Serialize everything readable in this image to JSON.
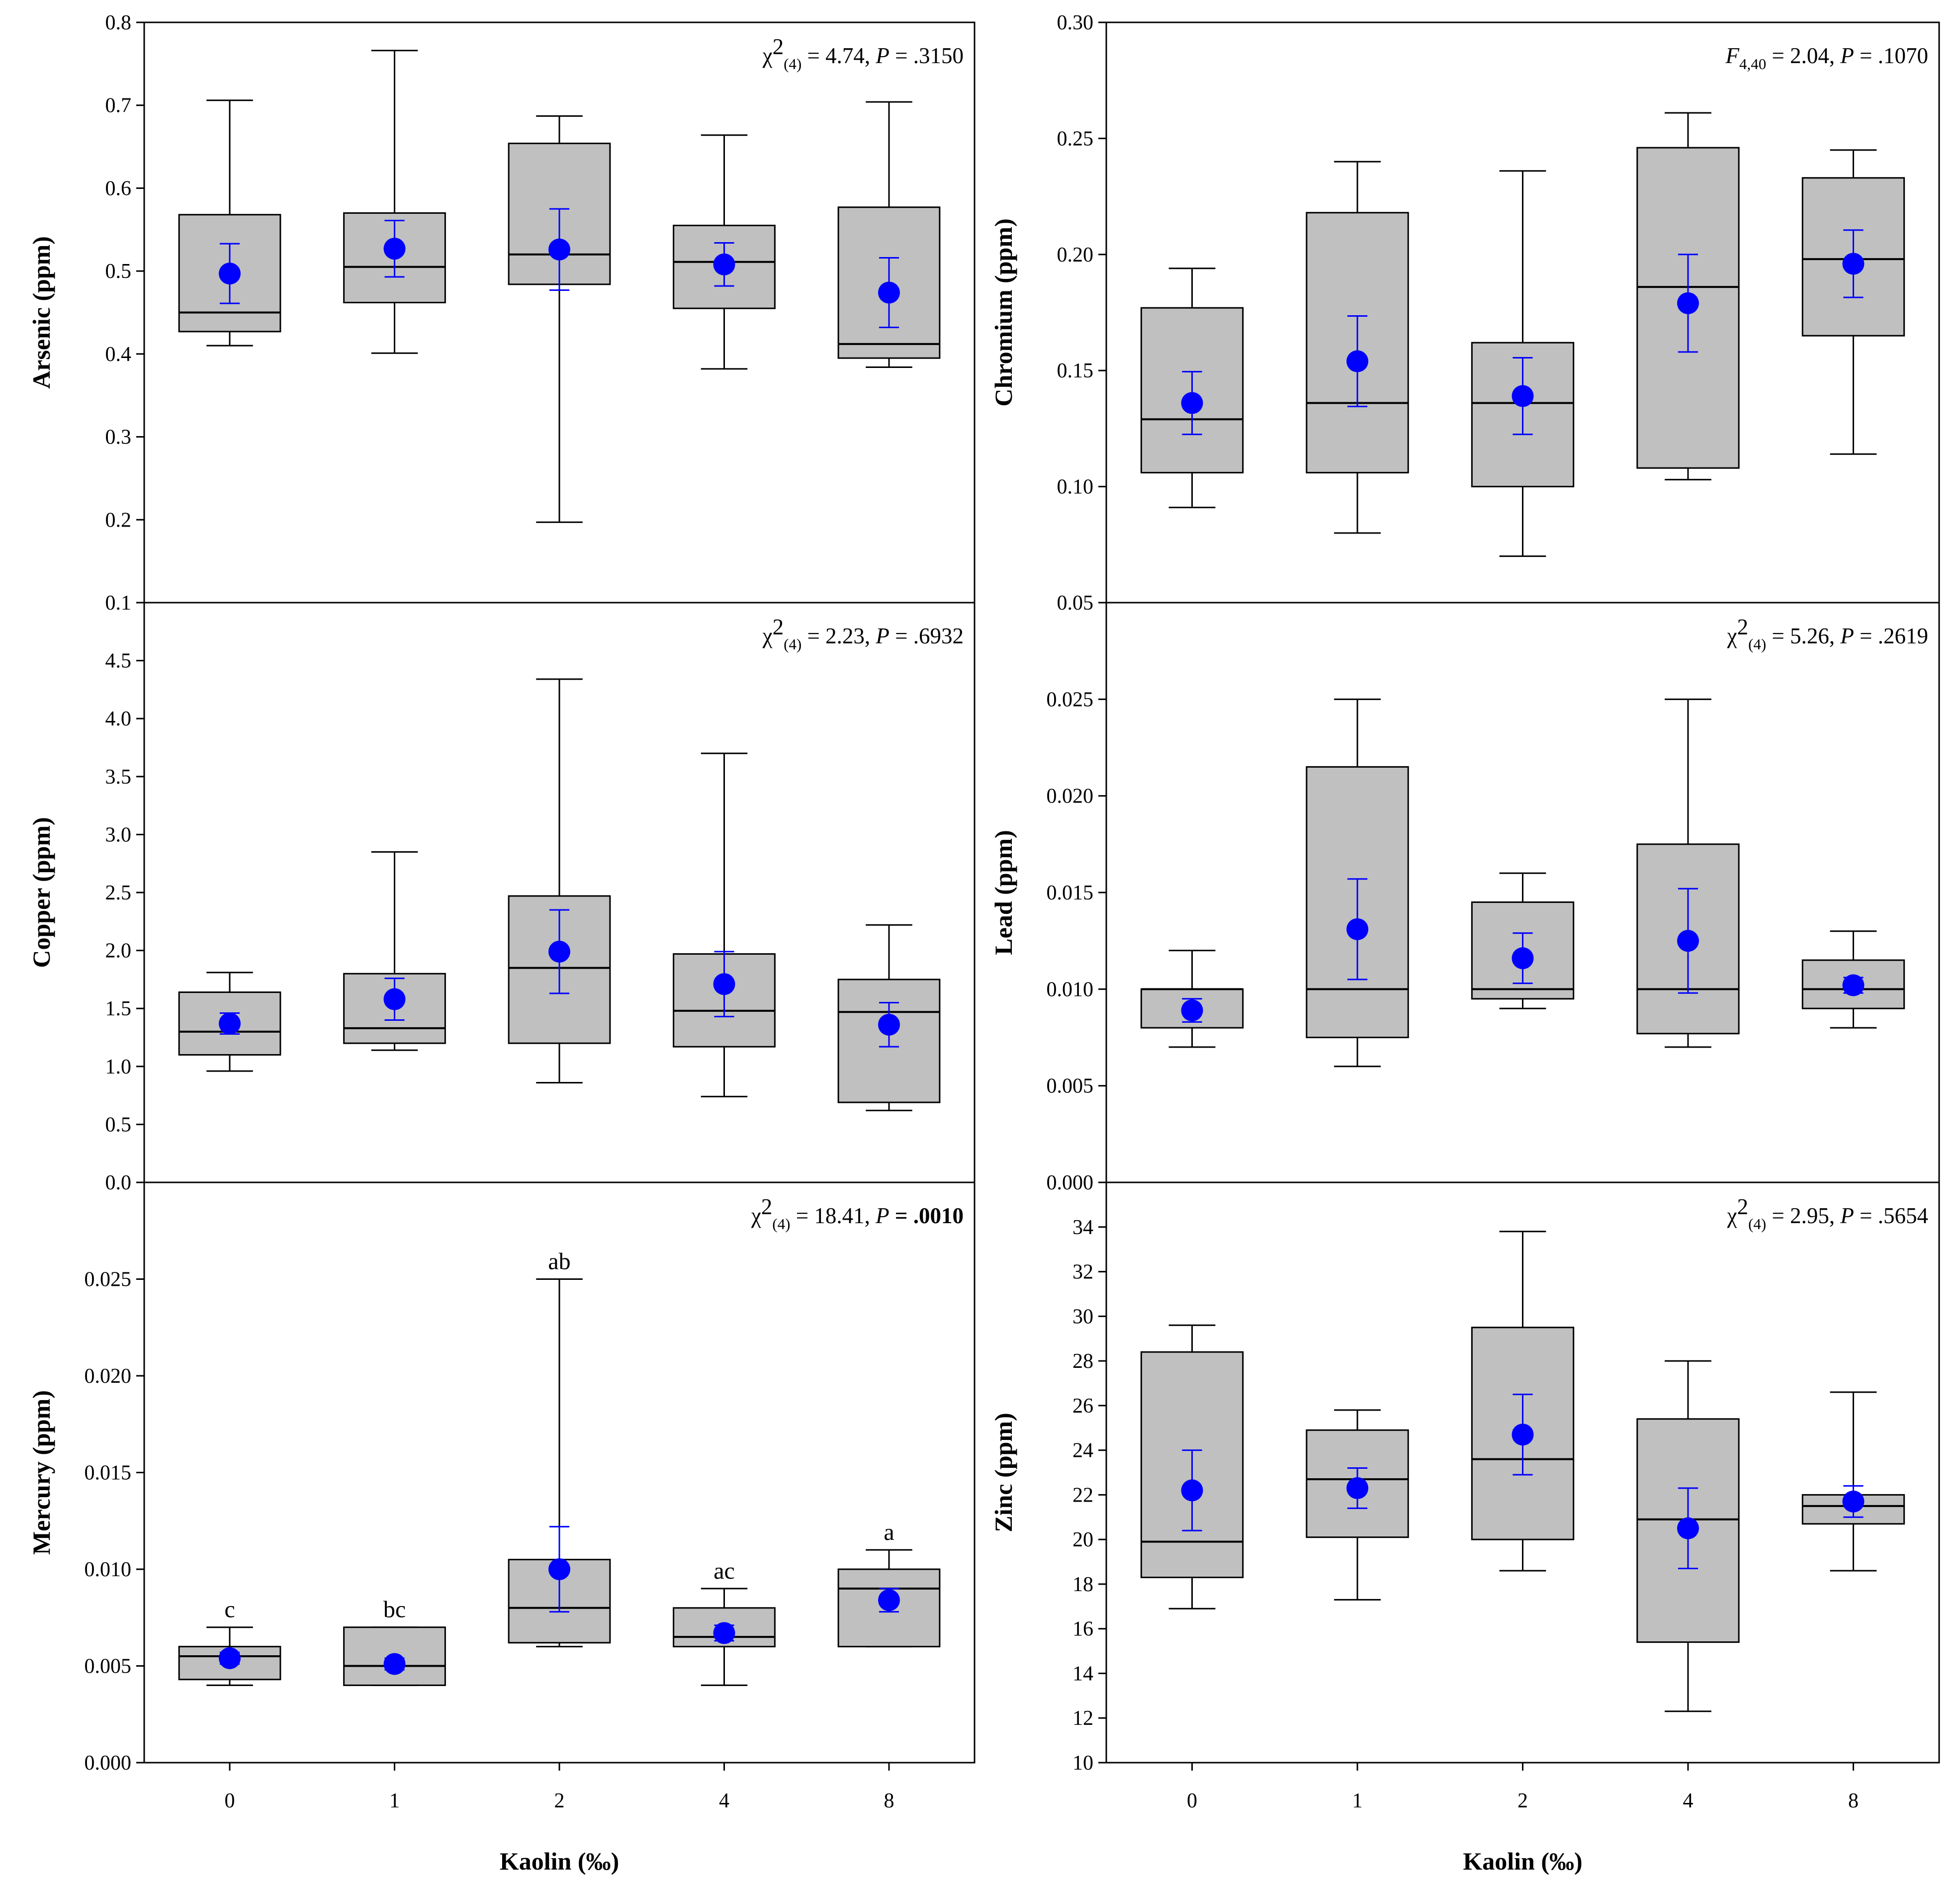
{
  "chart_data": [
    {
      "type": "boxplot",
      "panel": "top-left",
      "ylabel": "Arsenic (ppm)",
      "xlabel": "",
      "categories": [
        "0",
        "1",
        "2",
        "4",
        "8"
      ],
      "ylim": [
        0.1,
        0.8
      ],
      "yticks": [
        0.1,
        0.2,
        0.3,
        0.4,
        0.5,
        0.6,
        0.7,
        0.8
      ],
      "tick_decimals": 1,
      "stat": {
        "prefix": "χ",
        "sup": "2",
        "sub": "(4)",
        "rest": " = 4.74, ",
        "p_label": "P",
        "p_value": " = .3150",
        "p_bold": false
      },
      "boxes": [
        {
          "min": 0.41,
          "q1": 0.427,
          "median": 0.45,
          "q3": 0.568,
          "max": 0.706,
          "mean": 0.497,
          "se": 0.036
        },
        {
          "min": 0.401,
          "q1": 0.462,
          "median": 0.505,
          "q3": 0.57,
          "max": 0.766,
          "mean": 0.527,
          "se": 0.034
        },
        {
          "min": 0.197,
          "q1": 0.484,
          "median": 0.52,
          "q3": 0.654,
          "max": 0.687,
          "mean": 0.526,
          "se": 0.049
        },
        {
          "min": 0.382,
          "q1": 0.455,
          "median": 0.511,
          "q3": 0.555,
          "max": 0.664,
          "mean": 0.508,
          "se": 0.026
        },
        {
          "min": 0.384,
          "q1": 0.395,
          "median": 0.412,
          "q3": 0.577,
          "max": 0.704,
          "mean": 0.474,
          "se": 0.042
        }
      ],
      "letters": []
    },
    {
      "type": "boxplot",
      "panel": "top-right",
      "ylabel": "Chromium (ppm)",
      "xlabel": "",
      "categories": [
        "0",
        "1",
        "2",
        "4",
        "8"
      ],
      "ylim": [
        0.05,
        0.3
      ],
      "yticks": [
        0.05,
        0.1,
        0.15,
        0.2,
        0.25,
        0.3
      ],
      "tick_decimals": 2,
      "stat": {
        "prefix": "F",
        "sup": "",
        "sub": "4,40",
        "rest": " = 2.04, ",
        "p_label": "P",
        "p_value": " = .1070",
        "p_bold": false
      },
      "boxes": [
        {
          "min": 0.091,
          "q1": 0.106,
          "median": 0.129,
          "q3": 0.177,
          "max": 0.194,
          "mean": 0.136,
          "se": 0.0135
        },
        {
          "min": 0.08,
          "q1": 0.106,
          "median": 0.136,
          "q3": 0.218,
          "max": 0.24,
          "mean": 0.154,
          "se": 0.0195
        },
        {
          "min": 0.07,
          "q1": 0.1,
          "median": 0.136,
          "q3": 0.162,
          "max": 0.236,
          "mean": 0.139,
          "se": 0.0165
        },
        {
          "min": 0.103,
          "q1": 0.108,
          "median": 0.186,
          "q3": 0.246,
          "max": 0.261,
          "mean": 0.179,
          "se": 0.021
        },
        {
          "min": 0.114,
          "q1": 0.165,
          "median": 0.198,
          "q3": 0.233,
          "max": 0.245,
          "mean": 0.196,
          "se": 0.0145
        }
      ],
      "letters": []
    },
    {
      "type": "boxplot",
      "panel": "middle-left",
      "ylabel": "Copper (ppm)",
      "xlabel": "",
      "categories": [
        "0",
        "1",
        "2",
        "4",
        "8"
      ],
      "ylim": [
        0,
        5
      ],
      "yticks": [
        0,
        0.5,
        1,
        1.5,
        2,
        2.5,
        3,
        3.5,
        4,
        4.5
      ],
      "tick_decimals": 1,
      "stat": {
        "prefix": "χ",
        "sup": "2",
        "sub": "(4)",
        "rest": " = 2.23, ",
        "p_label": "P",
        "p_value": " = .6932",
        "p_bold": false
      },
      "boxes": [
        {
          "min": 0.96,
          "q1": 1.1,
          "median": 1.3,
          "q3": 1.64,
          "max": 1.81,
          "mean": 1.37,
          "se": 0.09
        },
        {
          "min": 1.14,
          "q1": 1.2,
          "median": 1.33,
          "q3": 1.8,
          "max": 2.85,
          "mean": 1.58,
          "se": 0.18
        },
        {
          "min": 0.86,
          "q1": 1.2,
          "median": 1.85,
          "q3": 2.47,
          "max": 4.34,
          "mean": 1.99,
          "se": 0.36
        },
        {
          "min": 0.74,
          "q1": 1.17,
          "median": 1.48,
          "q3": 1.97,
          "max": 3.7,
          "mean": 1.71,
          "se": 0.28
        },
        {
          "min": 0.62,
          "q1": 0.69,
          "median": 1.47,
          "q3": 1.75,
          "max": 2.22,
          "mean": 1.36,
          "se": 0.19
        }
      ],
      "letters": []
    },
    {
      "type": "boxplot",
      "panel": "middle-right",
      "ylabel": "Lead (ppm)",
      "xlabel": "",
      "categories": [
        "0",
        "1",
        "2",
        "4",
        "8"
      ],
      "ylim": [
        0,
        0.03
      ],
      "yticks": [
        0,
        0.005,
        0.01,
        0.015,
        0.02,
        0.025
      ],
      "tick_decimals": 3,
      "stat": {
        "prefix": "χ",
        "sup": "2",
        "sub": "(4)",
        "rest": " = 5.26, ",
        "p_label": "P",
        "p_value": " = .2619",
        "p_bold": false
      },
      "boxes": [
        {
          "min": 0.007,
          "q1": 0.008,
          "median": 0.01,
          "q3": 0.01,
          "max": 0.012,
          "mean": 0.0089,
          "se": 0.0006
        },
        {
          "min": 0.006,
          "q1": 0.0075,
          "median": 0.01,
          "q3": 0.0215,
          "max": 0.025,
          "mean": 0.0131,
          "se": 0.0026
        },
        {
          "min": 0.009,
          "q1": 0.0095,
          "median": 0.01,
          "q3": 0.0145,
          "max": 0.016,
          "mean": 0.0116,
          "se": 0.0013
        },
        {
          "min": 0.007,
          "q1": 0.0077,
          "median": 0.01,
          "q3": 0.0175,
          "max": 0.025,
          "mean": 0.0125,
          "se": 0.0027
        },
        {
          "min": 0.008,
          "q1": 0.009,
          "median": 0.01,
          "q3": 0.0115,
          "max": 0.013,
          "mean": 0.0102,
          "se": 0.0004
        }
      ],
      "letters": []
    },
    {
      "type": "boxplot",
      "panel": "bottom-left",
      "ylabel": "Mercury (ppm)",
      "xlabel": "Kaolin (‰)",
      "categories": [
        "0",
        "1",
        "2",
        "4",
        "8"
      ],
      "ylim": [
        0,
        0.03
      ],
      "yticks": [
        0,
        0.005,
        0.01,
        0.015,
        0.02,
        0.025
      ],
      "tick_decimals": 3,
      "stat": {
        "prefix": "χ",
        "sup": "2",
        "sub": "(4)",
        "rest": " = 18.41, ",
        "p_label": "P",
        "p_value": " = .0010",
        "p_bold": true
      },
      "boxes": [
        {
          "min": 0.004,
          "q1": 0.0043,
          "median": 0.0055,
          "q3": 0.006,
          "max": 0.007,
          "mean": 0.0054,
          "se": 0.0003
        },
        {
          "min": 0.004,
          "q1": 0.004,
          "median": 0.005,
          "q3": 0.007,
          "max": 0.007,
          "mean": 0.0051,
          "se": 0.0003
        },
        {
          "min": 0.006,
          "q1": 0.0062,
          "median": 0.008,
          "q3": 0.0105,
          "max": 0.025,
          "mean": 0.01,
          "se": 0.0022
        },
        {
          "min": 0.004,
          "q1": 0.006,
          "median": 0.0065,
          "q3": 0.008,
          "max": 0.009,
          "mean": 0.0067,
          "se": 0.0004
        },
        {
          "min": 0.006,
          "q1": 0.006,
          "median": 0.009,
          "q3": 0.01,
          "max": 0.011,
          "mean": 0.0084,
          "se": 0.0006
        }
      ],
      "letters": [
        "c",
        "bc",
        "ab",
        "ac",
        "a"
      ]
    },
    {
      "type": "boxplot",
      "panel": "bottom-right",
      "ylabel": "Zinc (ppm)",
      "xlabel": "Kaolin (‰)",
      "categories": [
        "0",
        "1",
        "2",
        "4",
        "8"
      ],
      "ylim": [
        10,
        36
      ],
      "yticks": [
        10,
        12,
        14,
        16,
        18,
        20,
        22,
        24,
        26,
        28,
        30,
        32,
        34
      ],
      "tick_decimals": 0,
      "stat": {
        "prefix": "χ",
        "sup": "2",
        "sub": "(4)",
        "rest": " = 2.95, ",
        "p_label": "P",
        "p_value": " = .5654",
        "p_bold": false
      },
      "boxes": [
        {
          "min": 16.9,
          "q1": 18.3,
          "median": 19.9,
          "q3": 28.4,
          "max": 29.6,
          "mean": 22.2,
          "se": 1.8
        },
        {
          "min": 17.3,
          "q1": 20.1,
          "median": 22.7,
          "q3": 24.9,
          "max": 25.8,
          "mean": 22.3,
          "se": 0.9
        },
        {
          "min": 18.6,
          "q1": 20.0,
          "median": 23.6,
          "q3": 29.5,
          "max": 33.8,
          "mean": 24.7,
          "se": 1.8
        },
        {
          "min": 12.3,
          "q1": 15.4,
          "median": 20.9,
          "q3": 25.4,
          "max": 28.0,
          "mean": 20.5,
          "se": 1.8
        },
        {
          "min": 18.6,
          "q1": 20.7,
          "median": 21.5,
          "q3": 22.0,
          "max": 26.6,
          "mean": 21.7,
          "se": 0.7
        }
      ],
      "letters": []
    }
  ]
}
